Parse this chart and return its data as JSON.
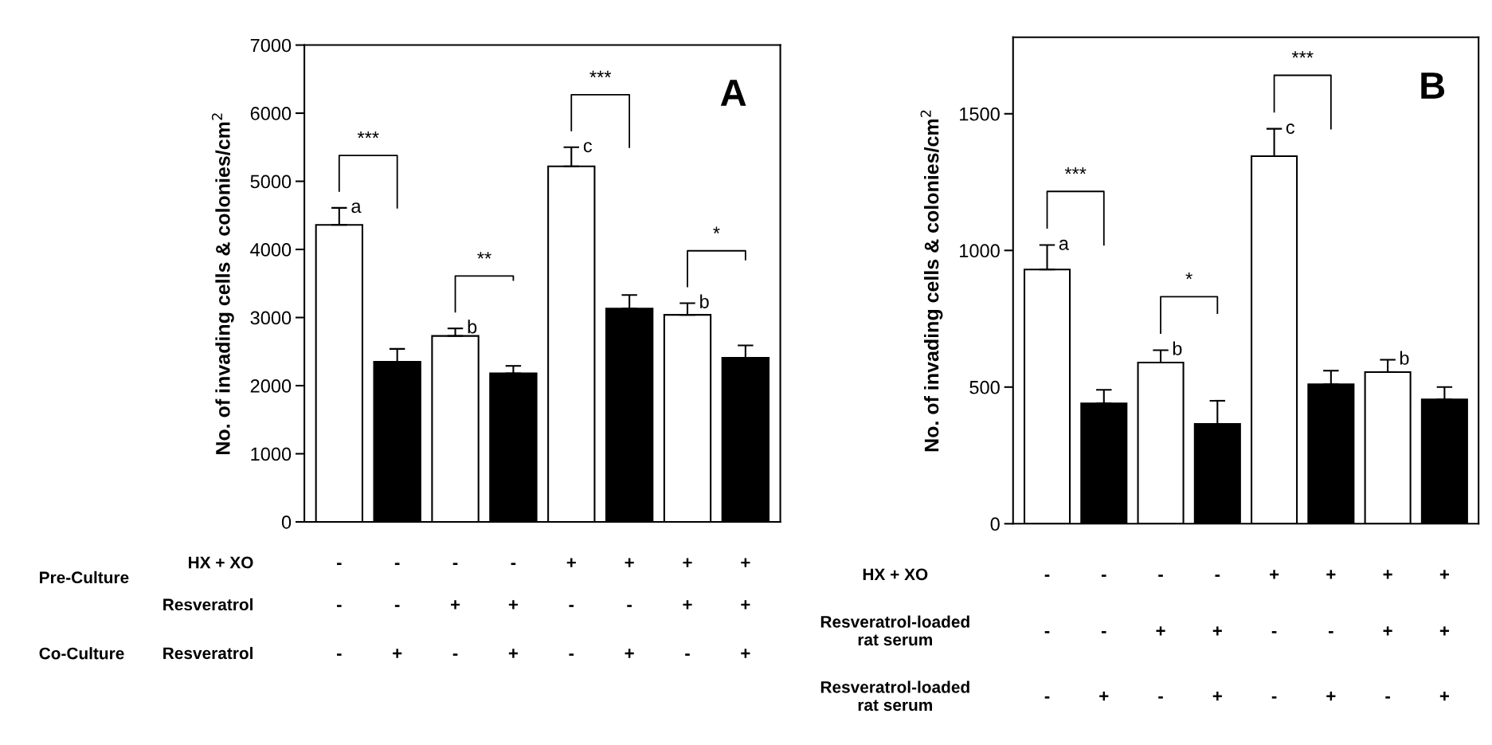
{
  "chart_data": [
    {
      "type": "bar",
      "ylabel": "No. of invading cells & colonies/cm$^{2}$",
      "categories": [
        "-\n-\n-",
        "-\n-\n+",
        "-\n+\n-",
        "-\n+\n+",
        "+\n-\n-",
        "+\n-\n+",
        "+\n+\n-",
        "+\n+\n+"
      ],
      "values": [
        4360,
        2350,
        2730,
        2180,
        5220,
        3130,
        3040,
        2410
      ],
      "colors": [
        "#ffffff",
        "#000000",
        "#ffffff",
        "#000000",
        "#ffffff",
        "#000000",
        "#ffffff",
        "#000000"
      ],
      "errors": [
        [
          4360,
          4610
        ],
        [
          2350,
          2540
        ],
        [
          2730,
          2840
        ],
        [
          2180,
          2290
        ],
        [
          5220,
          5500
        ],
        [
          3130,
          3330
        ],
        [
          3040,
          3210
        ],
        [
          2410,
          2590
        ]
      ],
      "ylim": [
        0,
        7000
      ],
      "yticks": [
        0,
        1000,
        2000,
        3000,
        4000,
        5000,
        6000,
        7000
      ],
      "grid": false,
      "annotations": [
        "A",
        "a",
        "b",
        "c",
        "b",
        "***",
        "**",
        "***",
        "*",
        "HX + XO",
        "Resveratrol",
        "Resveratrol",
        "Pre-Culture",
        "Co-Culture"
      ]
    },
    {
      "type": "bar",
      "ylabel": "No. of invading cells & colonies/cm$^{2}$",
      "categories": [
        "-\n-\n-",
        "-\n-\n+",
        "-\n+\n-",
        "-\n+\n+",
        "+\n-\n-",
        "+\n-\n+",
        "+\n+\n-",
        "+\n+\n+"
      ],
      "values": [
        930,
        440,
        590,
        365,
        1345,
        510,
        555,
        455
      ],
      "colors": [
        "#ffffff",
        "#000000",
        "#ffffff",
        "#000000",
        "#ffffff",
        "#000000",
        "#ffffff",
        "#000000"
      ],
      "errors": [
        [
          930,
          1020
        ],
        [
          440,
          490
        ],
        [
          590,
          635
        ],
        [
          365,
          450
        ],
        [
          1345,
          1445
        ],
        [
          510,
          560
        ],
        [
          555,
          600
        ],
        [
          455,
          500
        ]
      ],
      "ylim": [
        0,
        1780
      ],
      "yticks": [
        0,
        500,
        1000,
        1500
      ],
      "grid": false,
      "annotations": [
        "B",
        "a",
        "b",
        "c",
        "b",
        "***",
        "*",
        "***",
        "HX + XO",
        "Resveratrol-loaded\nrat serum",
        "Resveratrol-loaded\nrat serum"
      ]
    }
  ]
}
